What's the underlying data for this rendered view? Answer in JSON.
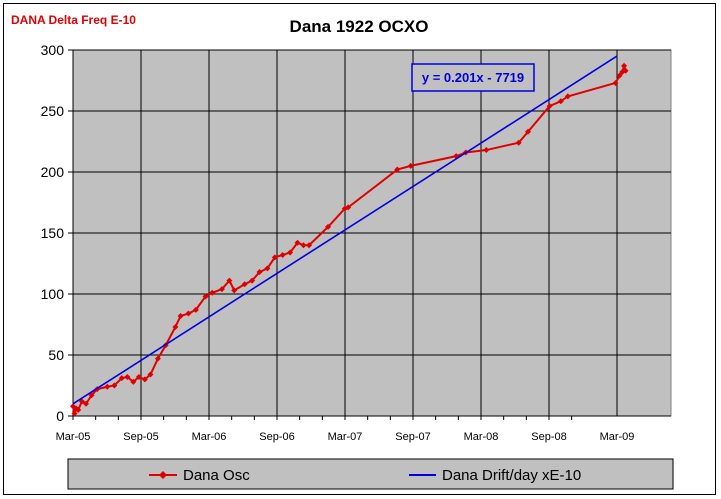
{
  "sheet_label": "DANA Delta Freq E-10",
  "chart_data": {
    "type": "line",
    "title": "Dana 1922 OCXO",
    "xlabel": "",
    "ylabel": "",
    "x_ticks": [
      "Mar-05",
      "Sep-05",
      "Mar-06",
      "Sep-06",
      "Mar-07",
      "Sep-07",
      "Mar-08",
      "Sep-08",
      "Mar-09"
    ],
    "ylim": [
      0,
      300
    ],
    "y_ticks": [
      0,
      50,
      100,
      150,
      200,
      250,
      300
    ],
    "grid": true,
    "legend_position": "bottom",
    "trendline_label": "y = 0.201x - 7719",
    "series": [
      {
        "name": "Dana Osc",
        "color": "#e00000",
        "marker": "diamond",
        "points": [
          [
            "2005-03-01",
            8
          ],
          [
            "2005-03-05",
            2
          ],
          [
            "2005-03-10",
            6
          ],
          [
            "2005-03-15",
            5
          ],
          [
            "2005-03-25",
            12
          ],
          [
            "2005-04-05",
            10
          ],
          [
            "2005-04-20",
            17
          ],
          [
            "2005-05-05",
            22
          ],
          [
            "2005-06-01",
            24
          ],
          [
            "2005-06-20",
            25
          ],
          [
            "2005-07-10",
            31
          ],
          [
            "2005-07-25",
            32
          ],
          [
            "2005-08-10",
            28
          ],
          [
            "2005-08-25",
            32
          ],
          [
            "2005-09-10",
            30
          ],
          [
            "2005-09-25",
            34
          ],
          [
            "2005-10-15",
            47
          ],
          [
            "2005-11-05",
            58
          ],
          [
            "2005-12-01",
            73
          ],
          [
            "2005-12-15",
            82
          ],
          [
            "2006-01-05",
            84
          ],
          [
            "2006-01-25",
            87
          ],
          [
            "2006-02-20",
            98
          ],
          [
            "2006-03-10",
            101
          ],
          [
            "2006-04-05",
            104
          ],
          [
            "2006-04-25",
            111
          ],
          [
            "2006-05-08",
            103
          ],
          [
            "2006-06-05",
            108
          ],
          [
            "2006-06-25",
            111
          ],
          [
            "2006-07-15",
            118
          ],
          [
            "2006-08-05",
            121
          ],
          [
            "2006-08-25",
            130
          ],
          [
            "2006-09-15",
            132
          ],
          [
            "2006-10-05",
            134
          ],
          [
            "2006-10-25",
            142
          ],
          [
            "2006-11-10",
            140
          ],
          [
            "2006-11-25",
            140
          ],
          [
            "2007-01-15",
            155
          ],
          [
            "2007-03-01",
            170
          ],
          [
            "2007-03-10",
            171
          ],
          [
            "2007-07-20",
            202
          ],
          [
            "2007-08-25",
            205
          ],
          [
            "2007-12-25",
            213
          ],
          [
            "2008-01-20",
            216
          ],
          [
            "2008-03-15",
            218
          ],
          [
            "2008-06-10",
            224
          ],
          [
            "2008-07-05",
            233
          ],
          [
            "2008-09-01",
            254
          ],
          [
            "2008-10-01",
            258
          ],
          [
            "2008-10-20",
            262
          ],
          [
            "2009-02-25",
            273
          ],
          [
            "2009-03-08",
            279
          ],
          [
            "2009-03-15",
            282
          ],
          [
            "2009-03-20",
            287
          ],
          [
            "2009-03-24",
            283
          ]
        ]
      },
      {
        "name": "Dana Drift/day xE-10",
        "color": "#0000e0",
        "marker": "none",
        "points": [
          [
            "2005-03-01",
            10
          ],
          [
            "2009-03-01",
            295
          ]
        ]
      }
    ]
  }
}
